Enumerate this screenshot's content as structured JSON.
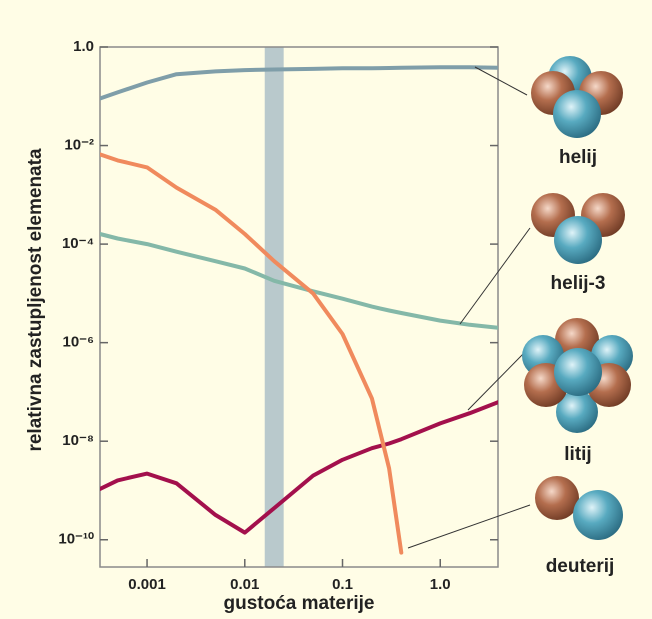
{
  "chart_data": {
    "type": "line",
    "xlabel": "gustoća materije",
    "ylabel": "relativna zastupljenost elemenata",
    "xscale": "log",
    "yscale": "log",
    "xlim": [
      0.00033,
      3.9
    ],
    "ylim": [
      2.8e-11,
      1
    ],
    "xticks": [
      0.001,
      0.01,
      0.1,
      {
        "value": 1,
        "label": "1.0"
      }
    ],
    "yticks": [
      {
        "value": 1,
        "label": "1.0"
      },
      {
        "value": 0.01,
        "label": "10⁻²"
      },
      {
        "value": 0.0001,
        "label": "10⁻⁴"
      },
      {
        "value": 1e-06,
        "label": "10⁻⁶"
      },
      {
        "value": 1e-08,
        "label": "10⁻⁸"
      },
      {
        "value": 1e-10,
        "label": "10⁻¹⁰"
      }
    ],
    "band": [
      0.016,
      0.025
    ],
    "band_color": "#b9c9cc",
    "x": [
      0.00033,
      0.0005,
      0.001,
      0.002,
      0.005,
      0.01,
      0.02,
      0.05,
      0.1,
      0.2,
      0.3,
      0.4,
      1,
      2,
      3.9
    ],
    "series": [
      {
        "name": "helij",
        "color": "#7f9ea9",
        "values": [
          0.09,
          0.12,
          0.19,
          0.28,
          0.32,
          0.34,
          0.35,
          0.36,
          0.37,
          0.37,
          0.375,
          0.38,
          0.39,
          0.39,
          0.38
        ]
      },
      {
        "name": "helij-3",
        "color": "#84b8a8",
        "values": [
          0.00016,
          0.00013,
          0.0001,
          7e-05,
          4.5e-05,
          3.2e-05,
          1.8e-05,
          1.1e-05,
          7.8e-06,
          5.4e-06,
          4.5e-06,
          4e-06,
          2.8e-06,
          2.3e-06,
          2e-06
        ]
      },
      {
        "name": "litij",
        "color": "#a3104c",
        "values": [
          1.07e-09,
          1.6e-09,
          2.2e-09,
          1.4e-09,
          3.2e-10,
          1.4e-10,
          4.4e-10,
          2e-09,
          4.2e-09,
          7.2e-09,
          9e-09,
          1.1e-08,
          2.3e-08,
          3.7e-08,
          6.2e-08
        ]
      },
      {
        "name": "deuterij",
        "color": "#f08a5d",
        "values": [
          0.0066,
          0.005,
          0.0036,
          0.0014,
          0.0005,
          0.00016,
          4.5e-05,
          1e-05,
          1.5e-06,
          7.4e-08,
          2.8e-09,
          5.5e-11,
          null,
          null,
          null
        ]
      }
    ]
  }
}
